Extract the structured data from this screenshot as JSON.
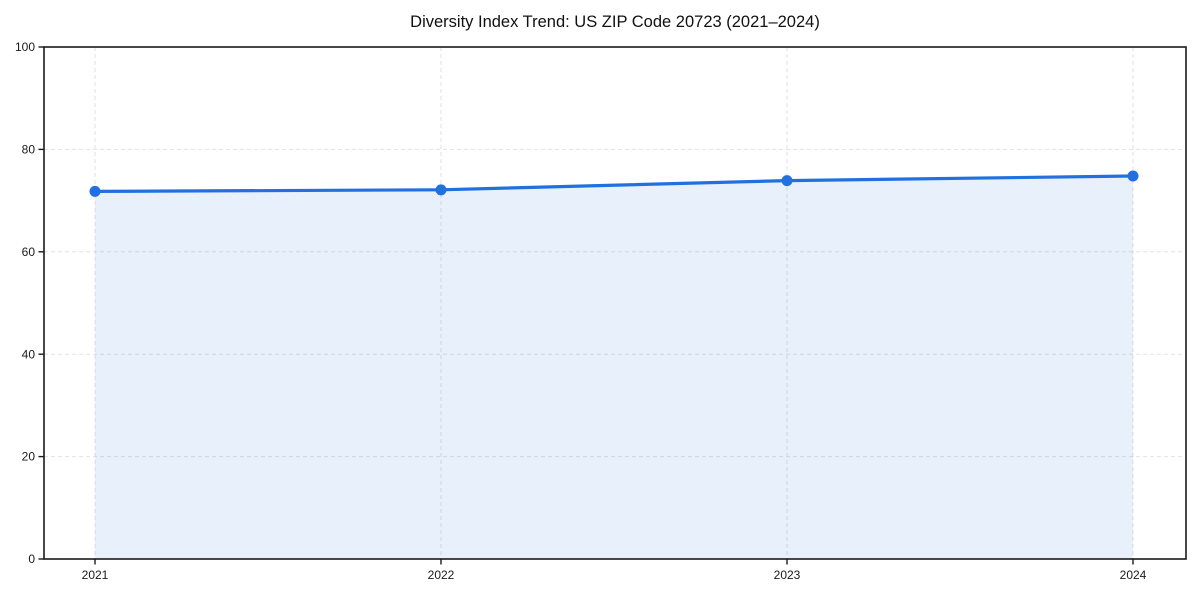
{
  "chart_data": {
    "type": "area",
    "title": "Diversity Index Trend: US ZIP Code 20723 (2021–2024)",
    "xlabel": "",
    "ylabel": "",
    "categories": [
      "2021",
      "2022",
      "2023",
      "2024"
    ],
    "values": [
      71.8,
      72.1,
      73.9,
      74.8
    ],
    "series_name": "Diversity Index",
    "ylim": [
      0,
      100
    ],
    "y_ticks": [
      0,
      20,
      40,
      60,
      80,
      100
    ],
    "grid": "dashed, both axes",
    "legend": "none",
    "markers": true,
    "colors": {
      "line": "#2270e0",
      "marker": "#2270e0",
      "fill": "rgba(34,112,224,0.10)",
      "grid": "#e2e2e2",
      "axis": "#1a1a1a",
      "tick_text": "#1a1a1a",
      "background": "#ffffff"
    }
  }
}
